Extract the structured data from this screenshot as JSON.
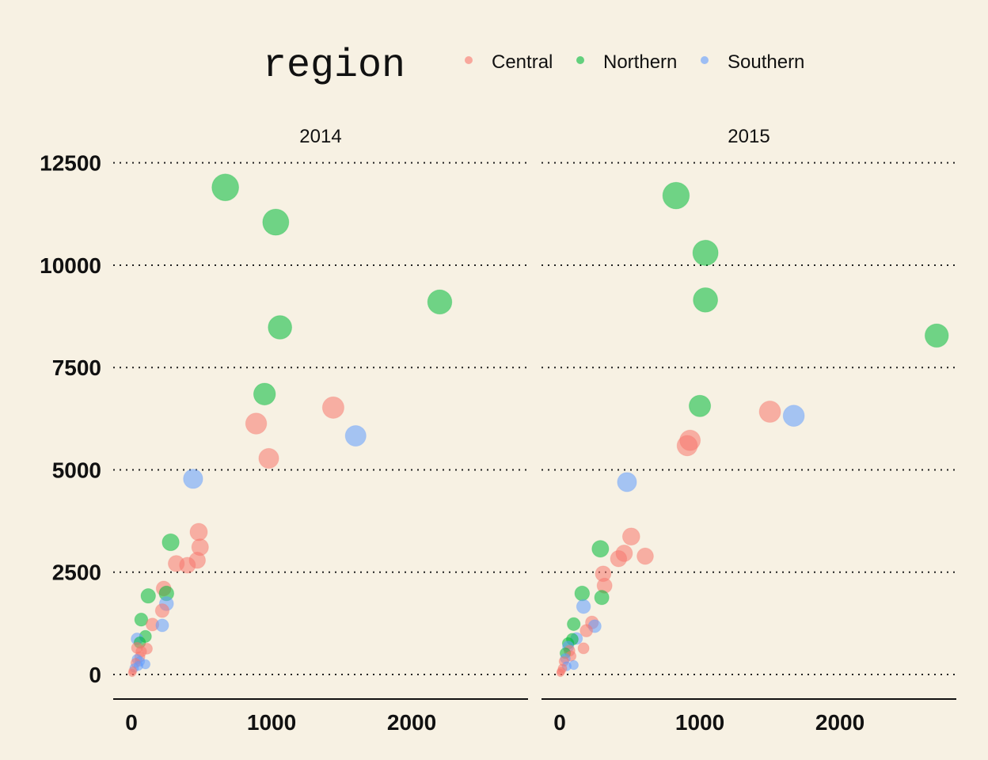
{
  "chart_data": {
    "type": "scatter",
    "facet_by": "year",
    "facets": [
      "2014",
      "2015"
    ],
    "legend": {
      "title": "region",
      "position": "top",
      "entries": [
        {
          "name": "Central",
          "color": "#f8766d"
        },
        {
          "name": "Northern",
          "color": "#00ba38"
        },
        {
          "name": "Southern",
          "color": "#619cff"
        }
      ]
    },
    "xlim": [
      -130,
      2830
    ],
    "ylim": [
      -600,
      12900
    ],
    "x_ticks": [
      0,
      1000,
      2000
    ],
    "x_tick_labels": [
      "0",
      "1000",
      "2000"
    ],
    "y_ticks": [
      0,
      2500,
      5000,
      7500,
      10000,
      12500
    ],
    "y_tick_labels": [
      "0",
      "2500",
      "5000",
      "7500",
      "10000",
      "12500"
    ],
    "grid": "y-major-dotted",
    "size_encodes": "y",
    "points": {
      "2014": [
        {
          "region": "Northern",
          "x": 670,
          "y": 11900
        },
        {
          "region": "Northern",
          "x": 1030,
          "y": 11050
        },
        {
          "region": "Northern",
          "x": 2200,
          "y": 9100
        },
        {
          "region": "Northern",
          "x": 1060,
          "y": 8480
        },
        {
          "region": "Northern",
          "x": 950,
          "y": 6850
        },
        {
          "region": "Central",
          "x": 1440,
          "y": 6520
        },
        {
          "region": "Central",
          "x": 890,
          "y": 6130
        },
        {
          "region": "Southern",
          "x": 1600,
          "y": 5830
        },
        {
          "region": "Central",
          "x": 980,
          "y": 5280
        },
        {
          "region": "Southern",
          "x": 440,
          "y": 4780
        },
        {
          "region": "Central",
          "x": 480,
          "y": 3480
        },
        {
          "region": "Northern",
          "x": 280,
          "y": 3230
        },
        {
          "region": "Central",
          "x": 490,
          "y": 3110
        },
        {
          "region": "Central",
          "x": 470,
          "y": 2790
        },
        {
          "region": "Central",
          "x": 320,
          "y": 2710
        },
        {
          "region": "Central",
          "x": 400,
          "y": 2670
        },
        {
          "region": "Central",
          "x": 230,
          "y": 2100
        },
        {
          "region": "Northern",
          "x": 250,
          "y": 1980
        },
        {
          "region": "Northern",
          "x": 120,
          "y": 1920
        },
        {
          "region": "Southern",
          "x": 250,
          "y": 1730
        },
        {
          "region": "Central",
          "x": 220,
          "y": 1560
        },
        {
          "region": "Northern",
          "x": 70,
          "y": 1340
        },
        {
          "region": "Central",
          "x": 150,
          "y": 1220
        },
        {
          "region": "Southern",
          "x": 220,
          "y": 1200
        },
        {
          "region": "Northern",
          "x": 100,
          "y": 930
        },
        {
          "region": "Southern",
          "x": 40,
          "y": 870
        },
        {
          "region": "Northern",
          "x": 60,
          "y": 780
        },
        {
          "region": "Central",
          "x": 40,
          "y": 650
        },
        {
          "region": "Central",
          "x": 110,
          "y": 630
        },
        {
          "region": "Central",
          "x": 70,
          "y": 560
        },
        {
          "region": "Central",
          "x": 60,
          "y": 430
        },
        {
          "region": "Southern",
          "x": 40,
          "y": 370
        },
        {
          "region": "Southern",
          "x": 60,
          "y": 320
        },
        {
          "region": "Central",
          "x": 30,
          "y": 280
        },
        {
          "region": "Southern",
          "x": 100,
          "y": 250
        },
        {
          "region": "Southern",
          "x": 50,
          "y": 210
        },
        {
          "region": "Southern",
          "x": 20,
          "y": 160
        },
        {
          "region": "Central",
          "x": 10,
          "y": 90
        },
        {
          "region": "Central",
          "x": 5,
          "y": 40
        }
      ],
      "2015": [
        {
          "region": "Northern",
          "x": 830,
          "y": 11700
        },
        {
          "region": "Northern",
          "x": 1040,
          "y": 10300
        },
        {
          "region": "Northern",
          "x": 1040,
          "y": 9150
        },
        {
          "region": "Northern",
          "x": 2690,
          "y": 8280
        },
        {
          "region": "Northern",
          "x": 1000,
          "y": 6560
        },
        {
          "region": "Central",
          "x": 1500,
          "y": 6420
        },
        {
          "region": "Southern",
          "x": 1670,
          "y": 6320
        },
        {
          "region": "Central",
          "x": 930,
          "y": 5720
        },
        {
          "region": "Central",
          "x": 910,
          "y": 5590
        },
        {
          "region": "Southern",
          "x": 480,
          "y": 4700
        },
        {
          "region": "Central",
          "x": 510,
          "y": 3370
        },
        {
          "region": "Northern",
          "x": 290,
          "y": 3070
        },
        {
          "region": "Central",
          "x": 460,
          "y": 2960
        },
        {
          "region": "Central",
          "x": 610,
          "y": 2890
        },
        {
          "region": "Central",
          "x": 420,
          "y": 2830
        },
        {
          "region": "Central",
          "x": 310,
          "y": 2460
        },
        {
          "region": "Central",
          "x": 320,
          "y": 2170
        },
        {
          "region": "Northern",
          "x": 160,
          "y": 1980
        },
        {
          "region": "Northern",
          "x": 300,
          "y": 1880
        },
        {
          "region": "Southern",
          "x": 170,
          "y": 1660
        },
        {
          "region": "Central",
          "x": 230,
          "y": 1270
        },
        {
          "region": "Northern",
          "x": 100,
          "y": 1230
        },
        {
          "region": "Southern",
          "x": 250,
          "y": 1180
        },
        {
          "region": "Central",
          "x": 190,
          "y": 1070
        },
        {
          "region": "Northern",
          "x": 90,
          "y": 860
        },
        {
          "region": "Southern",
          "x": 120,
          "y": 880
        },
        {
          "region": "Northern",
          "x": 60,
          "y": 760
        },
        {
          "region": "Southern",
          "x": 60,
          "y": 680
        },
        {
          "region": "Central",
          "x": 170,
          "y": 640
        },
        {
          "region": "Central",
          "x": 70,
          "y": 580
        },
        {
          "region": "Northern",
          "x": 40,
          "y": 520
        },
        {
          "region": "Central",
          "x": 80,
          "y": 450
        },
        {
          "region": "Southern",
          "x": 40,
          "y": 390
        },
        {
          "region": "Central",
          "x": 30,
          "y": 320
        },
        {
          "region": "Southern",
          "x": 100,
          "y": 230
        },
        {
          "region": "Southern",
          "x": 50,
          "y": 200
        },
        {
          "region": "Central",
          "x": 20,
          "y": 150
        },
        {
          "region": "Central",
          "x": 10,
          "y": 80
        },
        {
          "region": "Central",
          "x": 5,
          "y": 40
        }
      ]
    }
  }
}
